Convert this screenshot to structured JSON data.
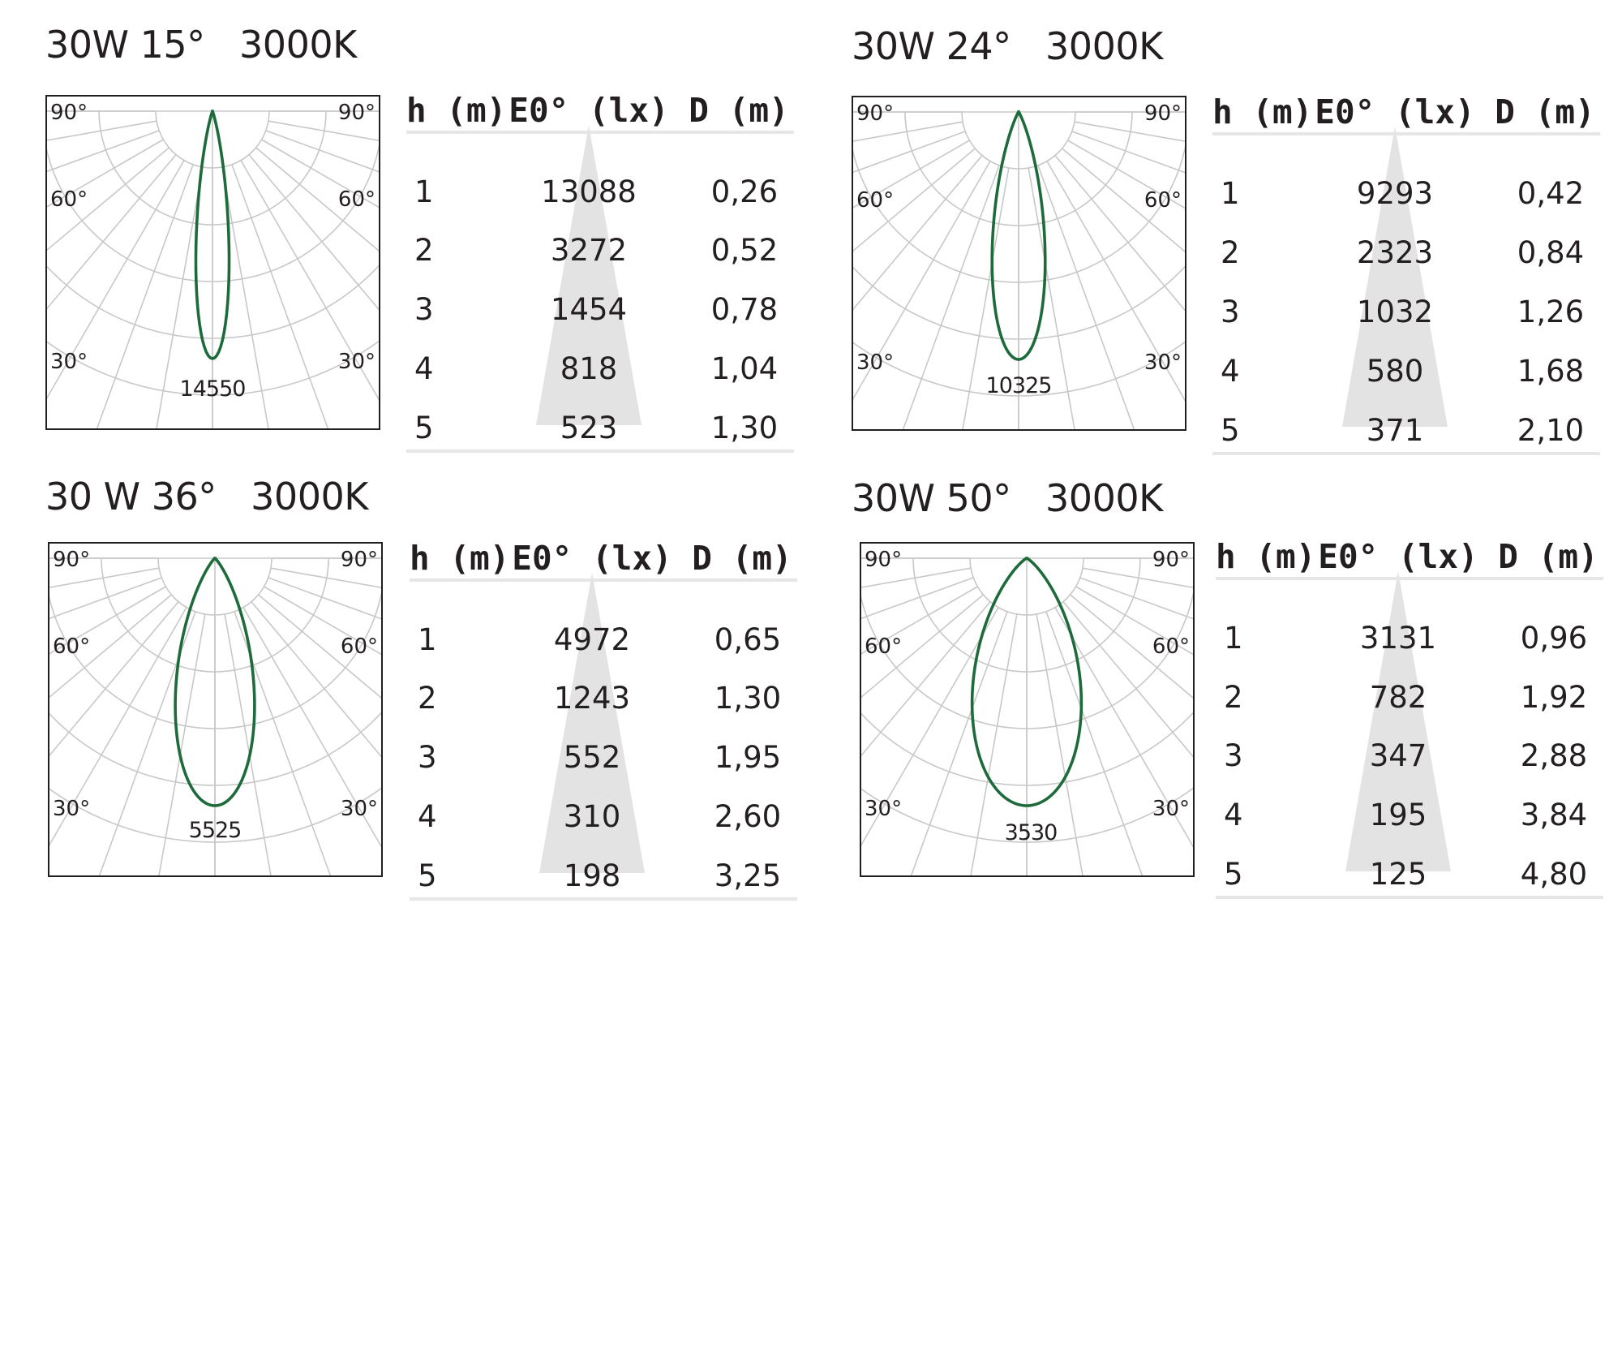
{
  "colors": {
    "curve": "#1d6a3a",
    "grid": "#c8c8c8",
    "frame": "#231f20",
    "cone": "#e3e3e3",
    "rule": "#e6e6e6"
  },
  "angle_labels": {
    "top_left": "90°",
    "top_right": "90°",
    "mid_left": "60°",
    "mid_right": "60°",
    "low_left": "30°",
    "low_right": "30°"
  },
  "table_headers": {
    "h": "h (m)",
    "e": "E0° (lx)",
    "d": "D (m)"
  },
  "panels": [
    {
      "title": "30W 15°   3000K",
      "beam_angle_deg": 15,
      "peak_label": "14550",
      "rows": [
        {
          "h": "1",
          "e": "13088",
          "d": "0,26"
        },
        {
          "h": "2",
          "e": "3272",
          "d": "0,52"
        },
        {
          "h": "3",
          "e": "1454",
          "d": "0,78"
        },
        {
          "h": "4",
          "e": "818",
          "d": "1,04"
        },
        {
          "h": "5",
          "e": "523",
          "d": "1,30"
        }
      ]
    },
    {
      "title": "30W 24°   3000K",
      "beam_angle_deg": 24,
      "peak_label": "10325",
      "rows": [
        {
          "h": "1",
          "e": "9293",
          "d": "0,42"
        },
        {
          "h": "2",
          "e": "2323",
          "d": "0,84"
        },
        {
          "h": "3",
          "e": "1032",
          "d": "1,26"
        },
        {
          "h": "4",
          "e": "580",
          "d": "1,68"
        },
        {
          "h": "5",
          "e": "371",
          "d": "2,10"
        }
      ]
    },
    {
      "title": "30 W 36°   3000K",
      "beam_angle_deg": 36,
      "peak_label": "5525",
      "rows": [
        {
          "h": "1",
          "e": "4972",
          "d": "0,65"
        },
        {
          "h": "2",
          "e": "1243",
          "d": "1,30"
        },
        {
          "h": "3",
          "e": "552",
          "d": "1,95"
        },
        {
          "h": "4",
          "e": "310",
          "d": "2,60"
        },
        {
          "h": "5",
          "e": "198",
          "d": "3,25"
        }
      ]
    },
    {
      "title": "30W 50°   3000K",
      "beam_angle_deg": 50,
      "peak_label": "3530",
      "rows": [
        {
          "h": "1",
          "e": "3131",
          "d": "0,96"
        },
        {
          "h": "2",
          "e": "782",
          "d": "1,92"
        },
        {
          "h": "3",
          "e": "347",
          "d": "2,88"
        },
        {
          "h": "4",
          "e": "195",
          "d": "3,84"
        },
        {
          "h": "5",
          "e": "125",
          "d": "4,80"
        }
      ]
    }
  ]
}
